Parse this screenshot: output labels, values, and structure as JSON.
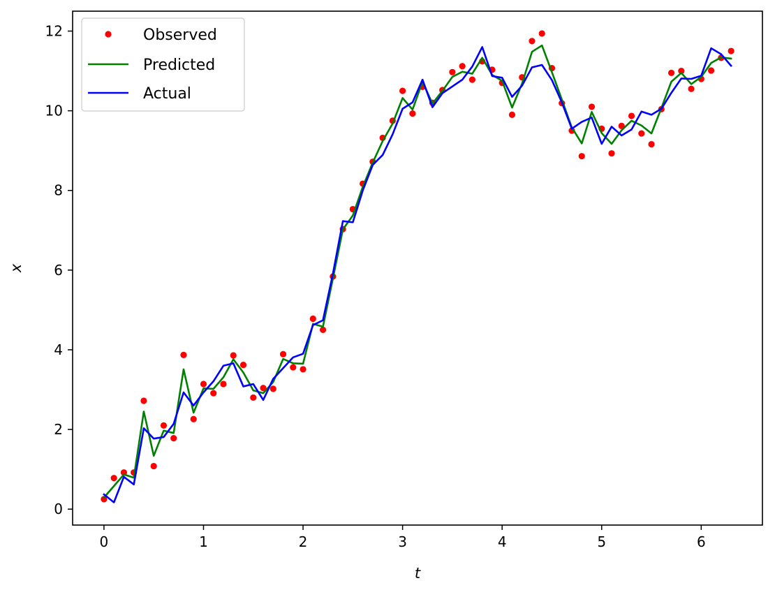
{
  "chart_data": {
    "type": "line",
    "title": "",
    "xlabel": "t",
    "ylabel": "x",
    "xlim": [
      -0.315,
      6.615
    ],
    "ylim": [
      -0.4,
      12.5
    ],
    "xticks": [
      0,
      1,
      2,
      3,
      4,
      5,
      6
    ],
    "yticks": [
      0,
      2,
      4,
      6,
      8,
      10,
      12
    ],
    "grid": false,
    "legend_position": "top-left",
    "x": [
      0.0,
      0.1,
      0.2,
      0.3,
      0.4,
      0.5,
      0.6,
      0.7,
      0.8,
      0.9,
      1.0,
      1.1,
      1.2,
      1.3,
      1.4,
      1.5,
      1.6,
      1.7,
      1.8,
      1.9,
      2.0,
      2.1,
      2.2,
      2.3,
      2.4,
      2.5,
      2.6,
      2.7,
      2.8,
      2.9,
      3.0,
      3.1,
      3.2,
      3.3,
      3.4,
      3.5,
      3.6,
      3.7,
      3.8,
      3.9,
      4.0,
      4.1,
      4.2,
      4.3,
      4.4,
      4.5,
      4.6,
      4.7,
      4.8,
      4.9,
      5.0,
      5.1,
      5.2,
      5.3,
      5.4,
      5.5,
      5.6,
      5.7,
      5.8,
      5.9,
      6.0,
      6.1,
      6.2,
      6.3
    ],
    "series": [
      {
        "name": "Observed",
        "style": "markers",
        "color": "#ff0000",
        "values": [
          0.25,
          0.78,
          0.92,
          0.92,
          2.72,
          1.08,
          2.1,
          1.78,
          3.87,
          2.26,
          3.14,
          2.91,
          3.14,
          3.86,
          3.62,
          2.8,
          3.04,
          3.02,
          3.89,
          3.56,
          3.51,
          4.78,
          4.5,
          5.84,
          7.03,
          7.53,
          8.17,
          8.72,
          9.32,
          9.75,
          10.5,
          9.93,
          10.6,
          10.2,
          10.52,
          10.97,
          11.12,
          10.78,
          11.24,
          11.03,
          10.7,
          9.9,
          10.84,
          11.75,
          11.94,
          11.07,
          10.19,
          9.5,
          8.86,
          10.1,
          9.55,
          8.93,
          9.62,
          9.87,
          9.43,
          9.16,
          10.04,
          10.95,
          11.0,
          10.55,
          10.8,
          11.01,
          11.33,
          11.5
        ]
      },
      {
        "name": "Predicted",
        "style": "line",
        "color": "#008000",
        "values": [
          0.29,
          0.58,
          0.87,
          0.79,
          2.45,
          1.34,
          1.97,
          1.91,
          3.51,
          2.42,
          3.03,
          3.02,
          3.31,
          3.76,
          3.43,
          2.98,
          2.91,
          3.19,
          3.77,
          3.66,
          3.65,
          4.65,
          4.58,
          5.79,
          7.02,
          7.37,
          8.09,
          8.7,
          9.24,
          9.68,
          10.32,
          10.03,
          10.73,
          10.18,
          10.5,
          10.85,
          10.98,
          10.93,
          11.33,
          10.9,
          10.75,
          10.08,
          10.68,
          11.48,
          11.64,
          10.97,
          10.28,
          9.58,
          9.18,
          9.97,
          9.44,
          9.17,
          9.51,
          9.75,
          9.63,
          9.43,
          10.07,
          10.73,
          10.95,
          10.67,
          10.85,
          11.2,
          11.34,
          11.31
        ]
      },
      {
        "name": "Actual",
        "style": "line",
        "color": "#0000ff",
        "values": [
          0.37,
          0.17,
          0.81,
          0.62,
          2.03,
          1.77,
          1.81,
          2.14,
          2.93,
          2.6,
          2.93,
          3.21,
          3.6,
          3.66,
          3.08,
          3.14,
          2.74,
          3.27,
          3.54,
          3.81,
          3.9,
          4.62,
          4.74,
          5.91,
          7.23,
          7.2,
          8.0,
          8.64,
          8.89,
          9.41,
          10.05,
          10.21,
          10.78,
          10.09,
          10.44,
          10.61,
          10.78,
          11.11,
          11.6,
          10.87,
          10.83,
          10.35,
          10.63,
          11.09,
          11.15,
          10.77,
          10.21,
          9.55,
          9.72,
          9.83,
          9.17,
          9.6,
          9.38,
          9.53,
          9.98,
          9.9,
          10.05,
          10.45,
          10.81,
          10.8,
          10.88,
          11.57,
          11.42,
          11.13
        ]
      }
    ]
  }
}
